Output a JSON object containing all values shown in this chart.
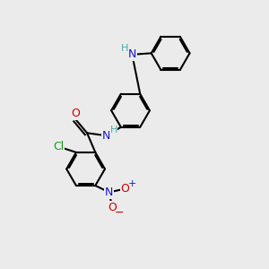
{
  "background_color": "#ebebeb",
  "bond_color": "#000000",
  "bond_width": 1.5,
  "dbo": 0.055,
  "r": 0.72,
  "atoms": {
    "Cl": {
      "color": "#1a9a1a",
      "fontsize": 9
    },
    "O": {
      "color": "#cc0000",
      "fontsize": 9
    },
    "N": {
      "color": "#1515cc",
      "fontsize": 9
    },
    "H": {
      "color": "#44aaaa",
      "fontsize": 8
    }
  },
  "figsize": [
    3.0,
    3.0
  ],
  "dpi": 100
}
